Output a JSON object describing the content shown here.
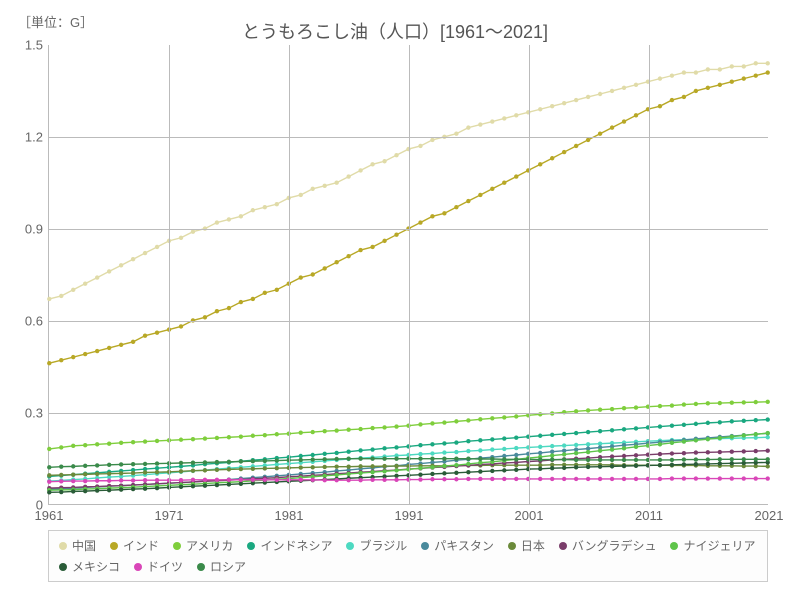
{
  "chart": {
    "type": "line",
    "unit_label": "［単位：G］",
    "title": "とうもろこし油（人口）[1961～2021]",
    "title_fontsize": 18,
    "label_fontsize": 13,
    "background_color": "#ffffff",
    "grid_color": "#bbbbbb",
    "text_color": "#666666",
    "xlim": [
      1961,
      2021
    ],
    "ylim": [
      0,
      1.5
    ],
    "xticks": [
      1961,
      1971,
      1981,
      1991,
      2001,
      2011,
      2021
    ],
    "yticks": [
      0,
      0.3,
      0.6,
      0.9,
      1.2,
      1.5
    ],
    "marker": "circle",
    "marker_size": 2.2,
    "line_width": 1.4,
    "series": [
      {
        "name": "中国",
        "color": "#e0dba8",
        "data": [
          0.67,
          0.68,
          0.7,
          0.72,
          0.74,
          0.76,
          0.78,
          0.8,
          0.82,
          0.84,
          0.86,
          0.87,
          0.89,
          0.9,
          0.92,
          0.93,
          0.94,
          0.96,
          0.97,
          0.98,
          1.0,
          1.01,
          1.03,
          1.04,
          1.05,
          1.07,
          1.09,
          1.11,
          1.12,
          1.14,
          1.16,
          1.17,
          1.19,
          1.2,
          1.21,
          1.23,
          1.24,
          1.25,
          1.26,
          1.27,
          1.28,
          1.29,
          1.3,
          1.31,
          1.32,
          1.33,
          1.34,
          1.35,
          1.36,
          1.37,
          1.38,
          1.39,
          1.4,
          1.41,
          1.41,
          1.42,
          1.42,
          1.43,
          1.43,
          1.44,
          1.44
        ]
      },
      {
        "name": "インド",
        "color": "#b8a826",
        "data": [
          0.46,
          0.47,
          0.48,
          0.49,
          0.5,
          0.51,
          0.52,
          0.53,
          0.55,
          0.56,
          0.57,
          0.58,
          0.6,
          0.61,
          0.63,
          0.64,
          0.66,
          0.67,
          0.69,
          0.7,
          0.72,
          0.74,
          0.75,
          0.77,
          0.79,
          0.81,
          0.83,
          0.84,
          0.86,
          0.88,
          0.9,
          0.92,
          0.94,
          0.95,
          0.97,
          0.99,
          1.01,
          1.03,
          1.05,
          1.07,
          1.09,
          1.11,
          1.13,
          1.15,
          1.17,
          1.19,
          1.21,
          1.23,
          1.25,
          1.27,
          1.29,
          1.3,
          1.32,
          1.33,
          1.35,
          1.36,
          1.37,
          1.38,
          1.39,
          1.4,
          1.41
        ]
      },
      {
        "name": "アメリカ",
        "color": "#7fce3c",
        "data": [
          0.18,
          0.185,
          0.19,
          0.192,
          0.195,
          0.197,
          0.2,
          0.202,
          0.204,
          0.206,
          0.208,
          0.21,
          0.212,
          0.214,
          0.216,
          0.218,
          0.22,
          0.223,
          0.225,
          0.228,
          0.23,
          0.233,
          0.235,
          0.238,
          0.24,
          0.243,
          0.245,
          0.248,
          0.25,
          0.253,
          0.256,
          0.26,
          0.263,
          0.266,
          0.27,
          0.273,
          0.277,
          0.28,
          0.283,
          0.286,
          0.29,
          0.293,
          0.296,
          0.3,
          0.303,
          0.306,
          0.308,
          0.31,
          0.313,
          0.315,
          0.318,
          0.32,
          0.322,
          0.325,
          0.327,
          0.329,
          0.33,
          0.331,
          0.332,
          0.333,
          0.334
        ]
      },
      {
        "name": "インドネシア",
        "color": "#1aa880",
        "data": [
          0.09,
          0.093,
          0.096,
          0.099,
          0.102,
          0.105,
          0.108,
          0.111,
          0.114,
          0.117,
          0.12,
          0.123,
          0.126,
          0.13,
          0.133,
          0.136,
          0.14,
          0.143,
          0.146,
          0.15,
          0.153,
          0.157,
          0.16,
          0.164,
          0.167,
          0.171,
          0.175,
          0.178,
          0.182,
          0.185,
          0.188,
          0.192,
          0.195,
          0.198,
          0.201,
          0.205,
          0.208,
          0.211,
          0.214,
          0.217,
          0.22,
          0.223,
          0.226,
          0.229,
          0.232,
          0.235,
          0.238,
          0.241,
          0.244,
          0.247,
          0.25,
          0.253,
          0.256,
          0.259,
          0.262,
          0.265,
          0.267,
          0.27,
          0.272,
          0.274,
          0.276
        ]
      },
      {
        "name": "ブラジル",
        "color": "#4dd9c1",
        "data": [
          0.075,
          0.077,
          0.08,
          0.082,
          0.085,
          0.088,
          0.09,
          0.093,
          0.096,
          0.099,
          0.102,
          0.105,
          0.108,
          0.111,
          0.114,
          0.117,
          0.12,
          0.123,
          0.126,
          0.129,
          0.132,
          0.135,
          0.138,
          0.141,
          0.144,
          0.147,
          0.15,
          0.152,
          0.155,
          0.158,
          0.16,
          0.163,
          0.165,
          0.168,
          0.17,
          0.173,
          0.175,
          0.178,
          0.18,
          0.183,
          0.185,
          0.187,
          0.189,
          0.191,
          0.193,
          0.195,
          0.197,
          0.199,
          0.201,
          0.203,
          0.205,
          0.207,
          0.209,
          0.21,
          0.212,
          0.213,
          0.214,
          0.215,
          0.216,
          0.217,
          0.218
        ]
      },
      {
        "name": "パキスタン",
        "color": "#4a8a9c",
        "data": [
          0.048,
          0.05,
          0.052,
          0.054,
          0.056,
          0.058,
          0.06,
          0.062,
          0.064,
          0.066,
          0.068,
          0.07,
          0.072,
          0.075,
          0.077,
          0.08,
          0.083,
          0.086,
          0.089,
          0.092,
          0.095,
          0.098,
          0.101,
          0.104,
          0.108,
          0.111,
          0.115,
          0.118,
          0.122,
          0.125,
          0.129,
          0.132,
          0.136,
          0.139,
          0.143,
          0.146,
          0.15,
          0.153,
          0.157,
          0.16,
          0.164,
          0.167,
          0.171,
          0.174,
          0.178,
          0.181,
          0.185,
          0.188,
          0.192,
          0.195,
          0.199,
          0.202,
          0.206,
          0.209,
          0.213,
          0.216,
          0.219,
          0.222,
          0.225,
          0.228,
          0.231
        ]
      },
      {
        "name": "日本",
        "color": "#6b8a3a",
        "data": [
          0.094,
          0.095,
          0.096,
          0.097,
          0.098,
          0.099,
          0.1,
          0.101,
          0.103,
          0.104,
          0.105,
          0.107,
          0.109,
          0.11,
          0.112,
          0.113,
          0.114,
          0.115,
          0.116,
          0.117,
          0.118,
          0.119,
          0.12,
          0.121,
          0.122,
          0.122,
          0.123,
          0.123,
          0.124,
          0.124,
          0.124,
          0.125,
          0.125,
          0.125,
          0.126,
          0.126,
          0.126,
          0.127,
          0.127,
          0.127,
          0.127,
          0.127,
          0.128,
          0.128,
          0.128,
          0.128,
          0.128,
          0.128,
          0.127,
          0.127,
          0.127,
          0.127,
          0.126,
          0.126,
          0.126,
          0.125,
          0.125,
          0.125,
          0.124,
          0.124,
          0.123
        ]
      },
      {
        "name": "バングラデシュ",
        "color": "#7a3d6a",
        "data": [
          0.052,
          0.053,
          0.054,
          0.056,
          0.057,
          0.059,
          0.06,
          0.062,
          0.064,
          0.066,
          0.068,
          0.07,
          0.072,
          0.074,
          0.076,
          0.078,
          0.08,
          0.082,
          0.084,
          0.086,
          0.089,
          0.091,
          0.094,
          0.096,
          0.099,
          0.101,
          0.104,
          0.106,
          0.109,
          0.111,
          0.114,
          0.116,
          0.119,
          0.121,
          0.124,
          0.126,
          0.129,
          0.131,
          0.134,
          0.136,
          0.139,
          0.141,
          0.144,
          0.146,
          0.148,
          0.15,
          0.153,
          0.155,
          0.157,
          0.159,
          0.161,
          0.163,
          0.165,
          0.166,
          0.168,
          0.169,
          0.17,
          0.171,
          0.172,
          0.173,
          0.174
        ]
      },
      {
        "name": "ナイジェリア",
        "color": "#5ec44a",
        "data": [
          0.045,
          0.046,
          0.047,
          0.049,
          0.05,
          0.052,
          0.053,
          0.055,
          0.057,
          0.059,
          0.061,
          0.063,
          0.065,
          0.067,
          0.069,
          0.071,
          0.073,
          0.076,
          0.078,
          0.081,
          0.083,
          0.086,
          0.089,
          0.092,
          0.095,
          0.098,
          0.101,
          0.104,
          0.107,
          0.11,
          0.113,
          0.117,
          0.12,
          0.124,
          0.127,
          0.131,
          0.135,
          0.138,
          0.142,
          0.146,
          0.15,
          0.154,
          0.158,
          0.162,
          0.166,
          0.17,
          0.174,
          0.178,
          0.182,
          0.187,
          0.191,
          0.195,
          0.2,
          0.204,
          0.208,
          0.212,
          0.216,
          0.22,
          0.224,
          0.228,
          0.232
        ]
      },
      {
        "name": "メキシコ",
        "color": "#2a5c38",
        "data": [
          0.038,
          0.039,
          0.041,
          0.042,
          0.044,
          0.045,
          0.047,
          0.049,
          0.05,
          0.052,
          0.054,
          0.056,
          0.058,
          0.06,
          0.062,
          0.064,
          0.066,
          0.068,
          0.07,
          0.072,
          0.074,
          0.076,
          0.078,
          0.08,
          0.082,
          0.084,
          0.086,
          0.088,
          0.09,
          0.092,
          0.094,
          0.096,
          0.098,
          0.1,
          0.102,
          0.104,
          0.106,
          0.108,
          0.11,
          0.112,
          0.114,
          0.115,
          0.117,
          0.118,
          0.12,
          0.121,
          0.122,
          0.123,
          0.124,
          0.125,
          0.126,
          0.127,
          0.128,
          0.129,
          0.13,
          0.131,
          0.132,
          0.133,
          0.134,
          0.135,
          0.136
        ]
      },
      {
        "name": "ドイツ",
        "color": "#d946b8",
        "data": [
          0.073,
          0.074,
          0.075,
          0.075,
          0.076,
          0.076,
          0.077,
          0.077,
          0.078,
          0.078,
          0.078,
          0.078,
          0.079,
          0.079,
          0.079,
          0.079,
          0.079,
          0.079,
          0.079,
          0.079,
          0.079,
          0.079,
          0.079,
          0.078,
          0.078,
          0.078,
          0.078,
          0.079,
          0.079,
          0.079,
          0.08,
          0.08,
          0.081,
          0.081,
          0.081,
          0.082,
          0.082,
          0.082,
          0.082,
          0.082,
          0.082,
          0.082,
          0.082,
          0.082,
          0.082,
          0.082,
          0.082,
          0.082,
          0.082,
          0.082,
          0.082,
          0.082,
          0.083,
          0.083,
          0.083,
          0.083,
          0.083,
          0.083,
          0.083,
          0.083,
          0.083
        ]
      },
      {
        "name": "ロシア",
        "color": "#3a8a4a",
        "data": [
          0.12,
          0.122,
          0.123,
          0.125,
          0.126,
          0.128,
          0.129,
          0.13,
          0.131,
          0.132,
          0.133,
          0.134,
          0.135,
          0.136,
          0.137,
          0.138,
          0.139,
          0.14,
          0.141,
          0.142,
          0.143,
          0.144,
          0.145,
          0.146,
          0.147,
          0.148,
          0.148,
          0.148,
          0.148,
          0.148,
          0.148,
          0.148,
          0.148,
          0.148,
          0.148,
          0.148,
          0.147,
          0.147,
          0.146,
          0.146,
          0.146,
          0.145,
          0.145,
          0.145,
          0.144,
          0.144,
          0.144,
          0.144,
          0.144,
          0.144,
          0.144,
          0.144,
          0.144,
          0.145,
          0.145,
          0.145,
          0.146,
          0.146,
          0.146,
          0.146,
          0.146
        ]
      }
    ]
  }
}
